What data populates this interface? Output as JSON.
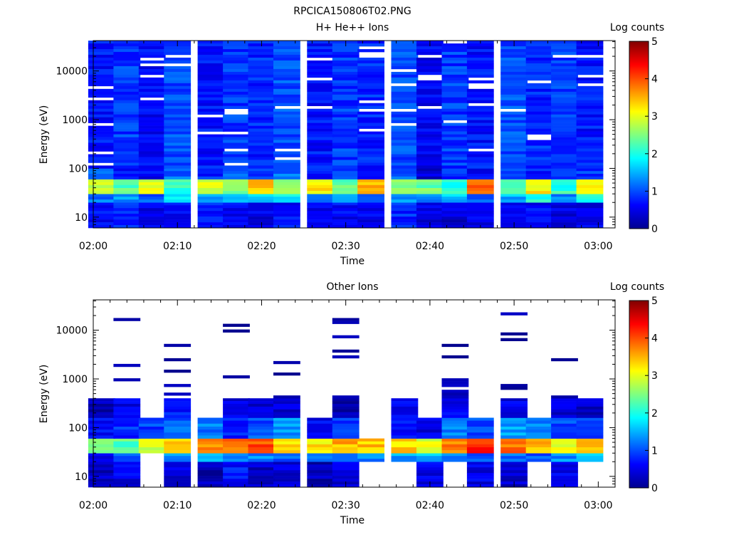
{
  "figure": {
    "title": "RPCICA150806T02.PNG"
  },
  "chart_data": [
    {
      "type": "heatmap",
      "title": "H+ He++ Ions",
      "xlabel": "Time",
      "ylabel": "Energy (eV)",
      "y_scale": "log",
      "xlim": [
        "02:00",
        "03:02"
      ],
      "ylim": [
        6,
        42000
      ],
      "x_ticks": [
        "02:00",
        "02:10",
        "02:20",
        "02:30",
        "02:40",
        "02:50",
        "03:00"
      ],
      "y_ticks": [
        "10",
        "100",
        "1000",
        "10000"
      ],
      "time_bins": [
        "02:01",
        "02:04",
        "02:07",
        "02:10",
        "02:14",
        "02:17",
        "02:20",
        "02:23",
        "02:27",
        "02:30",
        "02:33",
        "02:37",
        "02:40",
        "02:43",
        "02:46",
        "02:50",
        "02:53",
        "02:56",
        "02:59"
      ],
      "energy_bands_ev": [
        {
          "range": "6-20",
          "values": [
            0.6,
            0.8,
            0.5,
            0.6,
            0.7,
            0.6,
            0.5,
            0.7,
            0.6,
            0.6,
            0.5,
            0.8,
            0.5,
            0.4,
            0.5,
            0.6,
            0.6,
            0.5,
            0.5
          ]
        },
        {
          "range": "20-30",
          "values": [
            1.2,
            1.3,
            1.0,
            1.8,
            1.4,
            1.5,
            1.7,
            1.9,
            1.2,
            1.4,
            1.1,
            1.3,
            1.2,
            1.6,
            1.0,
            1.5,
            2.0,
            1.2,
            1.9
          ]
        },
        {
          "range": "30-60",
          "values": [
            2.8,
            2.3,
            3.0,
            2.1,
            2.9,
            2.5,
            3.4,
            2.7,
            3.2,
            2.4,
            3.5,
            2.6,
            2.4,
            2.0,
            3.8,
            2.2,
            3.2,
            2.1,
            3.0
          ]
        },
        {
          "range": "60-100",
          "values": [
            1.0,
            0.7,
            0.6,
            1.1,
            0.8,
            1.0,
            0.9,
            1.2,
            0.7,
            1.0,
            0.8,
            1.1,
            0.4,
            0.9,
            0.6,
            1.0,
            0.8,
            1.0,
            0.9
          ]
        },
        {
          "range": "100-42000",
          "values": [
            0.7,
            0.9,
            0.6,
            1.0,
            0.7,
            0.9,
            0.8,
            1.0,
            0.7,
            0.9,
            0.8,
            1.0,
            0.6,
            0.9,
            0.7,
            1.0,
            0.8,
            0.9,
            0.7
          ]
        }
      ],
      "colorbar": {
        "label": "Log counts",
        "range": [
          0,
          5
        ],
        "ticks": [
          "0",
          "1",
          "2",
          "3",
          "4",
          "5"
        ]
      },
      "colormap": [
        "#00008f",
        "#0000ff",
        "#00ffff",
        "#ffff00",
        "#ff0000",
        "#800000"
      ]
    },
    {
      "type": "heatmap",
      "title": "Other Ions",
      "xlabel": "Time",
      "ylabel": "Energy (eV)",
      "y_scale": "log",
      "xlim": [
        "02:00",
        "03:02"
      ],
      "ylim": [
        6,
        42000
      ],
      "x_ticks": [
        "02:00",
        "02:10",
        "02:20",
        "02:30",
        "02:40",
        "02:50",
        "03:00"
      ],
      "y_ticks": [
        "10",
        "100",
        "1000",
        "10000"
      ],
      "time_bins": [
        "02:01",
        "02:04",
        "02:07",
        "02:10",
        "02:14",
        "02:17",
        "02:20",
        "02:23",
        "02:27",
        "02:30",
        "02:33",
        "02:37",
        "02:40",
        "02:43",
        "02:46",
        "02:50",
        "02:53",
        "02:56",
        "02:59"
      ],
      "energy_bands_ev": [
        {
          "range": "6-20",
          "values": [
            0.3,
            0.5,
            null,
            0.4,
            0.2,
            0.7,
            0.3,
            0.4,
            0.2,
            0.4,
            null,
            null,
            0.5,
            null,
            0.5,
            0.3,
            null,
            0.5,
            null
          ]
        },
        {
          "range": "20-30",
          "values": [
            0.5,
            1.0,
            null,
            1.3,
            1.6,
            1.4,
            1.3,
            1.1,
            1.2,
            1.0,
            1.3,
            1.4,
            1.6,
            1.3,
            1.1,
            1.2,
            1.0,
            1.3,
            1.5
          ]
        },
        {
          "range": "30-60",
          "values": [
            2.6,
            2.3,
            2.9,
            3.3,
            3.6,
            3.8,
            4.0,
            3.3,
            3.2,
            3.5,
            3.4,
            3.3,
            3.0,
            3.7,
            4.2,
            3.8,
            3.5,
            3.0,
            3.4
          ]
        },
        {
          "range": "60-160",
          "values": [
            0.6,
            0.8,
            0.9,
            1.1,
            1.2,
            0.7,
            1.0,
            1.3,
            0.6,
            0.8,
            null,
            0.6,
            0.5,
            1.2,
            1.0,
            1.4,
            1.2,
            1.0,
            1.0
          ]
        },
        {
          "range": "160-400",
          "values": [
            0.2,
            0.5,
            null,
            0.7,
            null,
            0.5,
            0.4,
            0.4,
            null,
            0.2,
            null,
            0.5,
            null,
            0.5,
            null,
            0.5,
            null,
            0.4,
            0.3
          ]
        },
        {
          "range": "400-35000",
          "values": [
            null,
            0.1,
            null,
            0.1,
            null,
            0.1,
            null,
            0.1,
            null,
            0.1,
            null,
            0.1,
            null,
            0.1,
            null,
            0.1,
            null,
            0.1,
            null
          ]
        }
      ],
      "colorbar": {
        "label": "Log counts",
        "range": [
          0,
          5
        ],
        "ticks": [
          "0",
          "1",
          "2",
          "3",
          "4",
          "5"
        ]
      },
      "colormap": [
        "#00008f",
        "#0000ff",
        "#00ffff",
        "#ffff00",
        "#ff0000",
        "#800000"
      ]
    }
  ]
}
